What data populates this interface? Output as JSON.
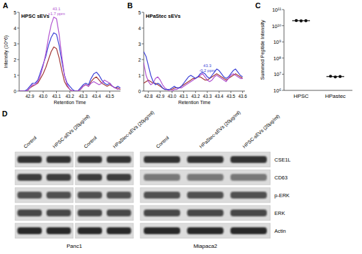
{
  "chart_data": [
    {
      "panel": "A",
      "type": "line",
      "title": "HPSC sEVs",
      "x_label": "Retention Time",
      "y_label": "Intensity (10^6)",
      "x": [
        42.82,
        42.84,
        42.86,
        42.88,
        42.9,
        42.92,
        42.94,
        42.96,
        42.98,
        43.0,
        43.02,
        43.04,
        43.06,
        43.08,
        43.1,
        43.12,
        43.14,
        43.16,
        43.18,
        43.2,
        43.22,
        43.24,
        43.26,
        43.28,
        43.3,
        43.32,
        43.34,
        43.36,
        43.38,
        43.4,
        43.42,
        43.44,
        43.46,
        43.48,
        43.5,
        43.52,
        43.54,
        43.56,
        43.58
      ],
      "xlim": [
        42.82,
        43.58
      ],
      "xticks": [
        42.9,
        {
          "value": 43,
          "label": "43.0"
        },
        43.1,
        43.2,
        43.3,
        43.4,
        43.5
      ],
      "ylim": [
        0,
        5
      ],
      "yticks": [
        0,
        1,
        2,
        3,
        4,
        5
      ],
      "series": [
        {
          "color": "#a03434",
          "values": [
            0,
            0,
            0,
            0,
            0.2,
            0.3,
            0.4,
            0.5,
            0.8,
            1.1,
            1.5,
            2.0,
            2.5,
            2.8,
            2.7,
            2.1,
            1.3,
            0.6,
            0.3,
            0.1,
            0,
            0,
            0,
            0.1,
            0.3,
            0.4,
            0.3,
            0.6,
            0.8,
            0.9,
            0.7,
            0.5,
            0.4,
            0.3,
            0.4,
            0.3,
            0.2,
            0.2,
            0.1
          ]
        },
        {
          "color": "#3a3fd6",
          "values": [
            0,
            0,
            0,
            0.1,
            0.3,
            0.5,
            0.5,
            0.7,
            1.2,
            1.7,
            2.2,
            2.9,
            3.4,
            3.7,
            3.6,
            2.9,
            1.9,
            1.0,
            0.5,
            0.3,
            0.1,
            0,
            0,
            0.2,
            0.4,
            0.5,
            0.4,
            0.8,
            1.1,
            1.2,
            1.0,
            0.7,
            0.5,
            0.4,
            0.5,
            0.3,
            0.2,
            0.3,
            0.2
          ]
        },
        {
          "color": "#b050d0",
          "values": [
            0,
            0,
            0,
            0,
            0.2,
            0.4,
            0.4,
            0.6,
            1.0,
            1.6,
            2.4,
            3.4,
            4.2,
            4.7,
            4.6,
            3.6,
            2.2,
            1.0,
            0.4,
            0.1,
            0,
            0,
            0,
            0.1,
            0.3,
            0.4,
            0.3,
            0.5,
            0.6,
            0.5,
            0.4,
            0.5,
            0.7,
            0.6,
            0.5,
            0.3,
            0.2,
            0.1,
            0.2
          ]
        }
      ],
      "annotations": [
        {
          "text": [
            "43.1",
            "+1.7 ppm"
          ],
          "x": 43.1,
          "y": 4.7,
          "color": "#b050d0"
        }
      ]
    },
    {
      "panel": "B",
      "type": "line",
      "title": "HPaStec sEVs",
      "x_label": "Retention Time",
      "x": [
        42.76,
        42.78,
        42.8,
        42.82,
        42.84,
        42.86,
        42.88,
        42.9,
        42.92,
        42.94,
        42.96,
        42.98,
        43.0,
        43.02,
        43.04,
        43.06,
        43.08,
        43.1,
        43.12,
        43.14,
        43.16,
        43.18,
        43.2,
        43.22,
        43.24,
        43.26,
        43.28,
        43.3,
        43.32,
        43.34,
        43.36,
        43.38,
        43.4,
        43.42,
        43.44,
        43.46,
        43.48,
        43.5,
        43.52,
        43.54,
        43.56,
        43.58,
        43.6
      ],
      "xlim": [
        42.76,
        43.62
      ],
      "xticks": [
        42.8,
        42.9,
        {
          "value": 43,
          "label": "43.0"
        },
        43.1,
        43.2,
        43.3,
        43.4,
        43.5,
        43.6
      ],
      "ylim": [
        0,
        5
      ],
      "yticks": [
        0,
        1,
        2,
        3,
        4,
        5
      ],
      "series": [
        {
          "color": "#a03434",
          "values": [
            0.5,
            0.6,
            0.7,
            0.6,
            0.5,
            0.5,
            0.4,
            0.3,
            0.2,
            0.1,
            0.1,
            0.1,
            0.1,
            0.2,
            0.2,
            0.2,
            0.3,
            0.4,
            0.5,
            0.6,
            0.7,
            0.8,
            0.8,
            0.9,
            0.9,
            0.8,
            0.7,
            0.7,
            0.8,
            0.9,
            1.0,
            1.1,
            1.0,
            0.9,
            0.8,
            0.7,
            0.8,
            0.9,
            1.0,
            1.1,
            1.0,
            0.9,
            0.8
          ]
        },
        {
          "color": "#b050d0",
          "values": [
            1.8,
            1.0,
            0.6,
            0.4,
            0.5,
            0.8,
            0.9,
            0.7,
            0.4,
            0.2,
            0.1,
            0,
            0,
            0.1,
            0.1,
            0.2,
            0.2,
            0.3,
            0.4,
            0.5,
            0.6,
            0.7,
            0.8,
            0.9,
            1.0,
            1.1,
            0.9,
            0.7,
            0.6,
            0.7,
            0.9,
            1.0,
            0.9,
            0.8,
            0.7,
            0.6,
            0.8,
            1.0,
            1.1,
            1.0,
            0.9,
            0.8,
            0.8
          ]
        },
        {
          "color": "#3a3fd6",
          "values": [
            2.5,
            2.2,
            1.6,
            1.0,
            0.6,
            0.4,
            0.5,
            0.4,
            0.2,
            0.1,
            0.1,
            0.1,
            0.2,
            0.3,
            0.2,
            0.2,
            0.3,
            0.5,
            0.7,
            0.9,
            1.0,
            0.9,
            0.8,
            0.9,
            1.1,
            1.2,
            1.1,
            0.9,
            0.8,
            1.0,
            1.2,
            1.4,
            1.3,
            1.1,
            0.9,
            0.8,
            0.9,
            1.1,
            1.3,
            1.4,
            1.2,
            1.0,
            0.9
          ]
        }
      ],
      "annotations": [
        {
          "text": [
            "43.3",
            "-0.2 ppm"
          ],
          "x": 43.3,
          "y": 1.1,
          "color": "#3a3fd6"
        }
      ]
    },
    {
      "panel": "C",
      "type": "scatter",
      "y_label": "Summed Peptide Intensity",
      "categories": [
        "HPSC",
        "HPastec"
      ],
      "values": [
        [
          21000000000,
          20000000000,
          20500000000
        ],
        [
          7500000,
          6800000,
          7200000
        ]
      ],
      "means": [
        20500000000,
        7200000
      ],
      "color": "#111111",
      "log": "y",
      "ylim": [
        1000000,
        100000000000
      ],
      "yticks": [
        {
          "value": 1000000,
          "label": "10⁶"
        },
        {
          "value": 10000000,
          "label": "10⁷"
        },
        {
          "value": 100000000,
          "label": "10⁸"
        },
        {
          "value": 1000000000,
          "label": "10⁹"
        },
        {
          "value": 10000000000,
          "label": "10¹⁰"
        },
        {
          "value": 100000000000,
          "label": "10¹¹"
        }
      ]
    }
  ],
  "blot": {
    "panel": "D",
    "rows": [
      "CSE1L",
      "CD63",
      "p-ERK",
      "ERK",
      "Actin"
    ],
    "groups": [
      {
        "label": "Panc1",
        "blots": [
          {
            "lanes": [
              "Control",
              "HPSC-sEVs (20μg/ml)"
            ]
          },
          {
            "lanes": [
              "Control",
              "HPaStec-sEVs (20μg/ml)"
            ]
          }
        ]
      },
      {
        "label": "Miapaca2",
        "blots": [
          {
            "lanes": [
              "Control",
              "HPaStec-sEVs (20μg/ml)",
              "HPSC-sEVs (20μg/ml)"
            ]
          }
        ]
      }
    ]
  }
}
